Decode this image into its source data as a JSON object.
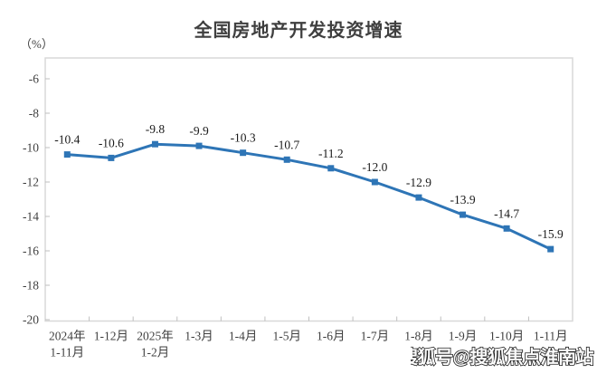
{
  "page": {
    "title": "全国房地产开发投资增速",
    "unit_label": "（%）",
    "watermark": "搜狐号@搜狐焦点淮南站"
  },
  "chart_data": {
    "type": "line",
    "title": "全国房地产开发投资增速",
    "ylabel": "(%)",
    "xlabel": "",
    "categories": [
      [
        "2024年",
        "1-11月"
      ],
      [
        "1-12月"
      ],
      [
        "2025年",
        "1-2月"
      ],
      [
        "1-3月"
      ],
      [
        "1-4月"
      ],
      [
        "1-5月"
      ],
      [
        "1-6月"
      ],
      [
        "1-7月"
      ],
      [
        "1-8月"
      ],
      [
        "1-9月"
      ],
      [
        "1-10月"
      ],
      [
        "1-11月"
      ]
    ],
    "series": [
      {
        "name": "全国房地产开发投资增速",
        "values": [
          -10.4,
          -10.6,
          -9.8,
          -9.9,
          -10.3,
          -10.7,
          -11.2,
          -12.0,
          -12.9,
          -13.9,
          -14.7,
          -15.9
        ]
      }
    ],
    "yticks": [
      -6,
      -8,
      -10,
      -12,
      -14,
      -16,
      -18,
      -20
    ],
    "ylim": [
      -20,
      -6
    ],
    "grid": false,
    "legend": false,
    "marker": "square",
    "colors": {
      "line": "#2E75B6",
      "marker": "#2E75B6",
      "axis_border": "#D8D8D8",
      "tick": "#BFBFBF",
      "tick_text": "#404040",
      "data_label_text": "#1a1a1a"
    }
  }
}
